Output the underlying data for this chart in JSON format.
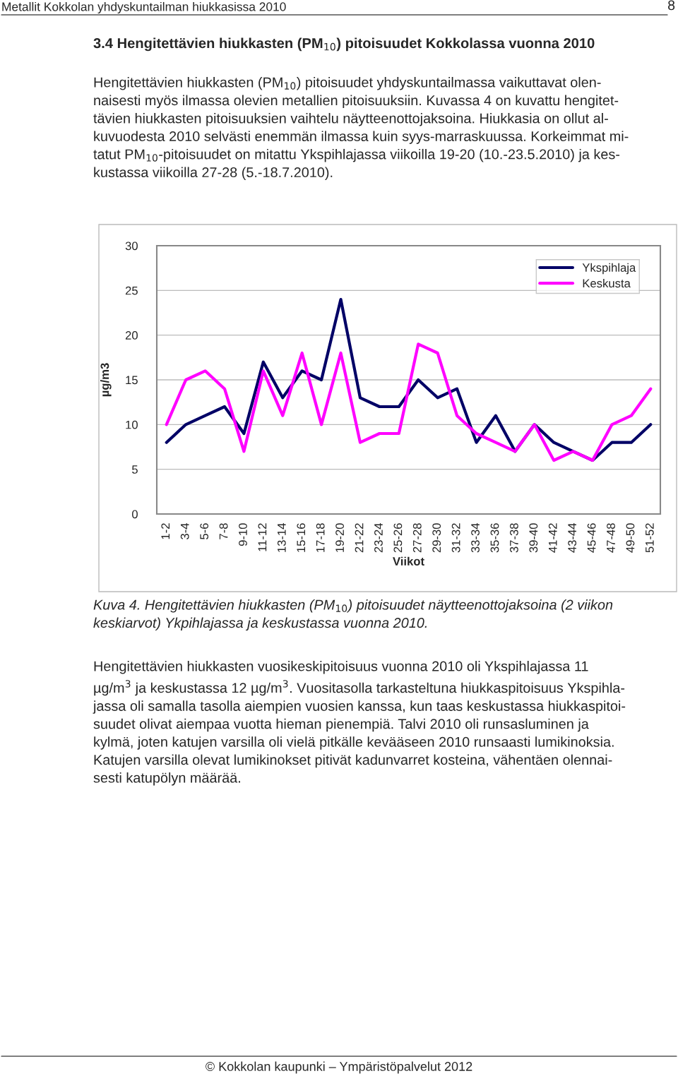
{
  "chart_data": {
    "type": "line",
    "title": "3.4 Hengitettävien hiukkasten (PM$_{10}$) pitoisuudet Kokkolassa vuonna 2010",
    "xlabel": "Viikot",
    "ylabel": "µg/m3",
    "categories": [
      "1-2",
      "3-4",
      "5-6",
      "7-8",
      "9-10",
      "11-12",
      "13-14",
      "15-16",
      "17-18",
      "19-20",
      "21-22",
      "23-24",
      "25-26",
      "27-28",
      "29-30",
      "31-32",
      "33-34",
      "35-36",
      "37-38",
      "39-40",
      "41-42",
      "43-44",
      "45-46",
      "47-48",
      "49-50",
      "51-52"
    ],
    "series": [
      {
        "name": "Ykspihlaja",
        "color": "#000066",
        "values": [
          8,
          10,
          11,
          12,
          9,
          17,
          13,
          16,
          15,
          24,
          13,
          12,
          12,
          15,
          13,
          14,
          8,
          11,
          7,
          10,
          8,
          7,
          6,
          8,
          8,
          10
        ]
      },
      {
        "name": "Keskusta",
        "color": "#ff00ff",
        "values": [
          10,
          15,
          16,
          14,
          7,
          16,
          11,
          18,
          10,
          18,
          8,
          9,
          9,
          19,
          18,
          11,
          9,
          8,
          7,
          10,
          6,
          7,
          6,
          10,
          11,
          14
        ]
      }
    ],
    "ylim": [
      0,
      30
    ],
    "yticks": [
      0,
      5,
      10,
      15,
      20,
      25,
      30
    ],
    "grid": "y",
    "legend": "top right",
    "marker": "none",
    "line_style": "solid",
    "annotations": [
      "Metallit Kokkolan yhdyskuntailman hiukkasissa 2010",
      "8",
      "Hengitettävien hiukkasten (PM$_{10}$) pitoisuudet yhdyskuntailmassa vaikuttavat olen-\nnaisesti myös ilmassa olevien metallien pitoisuuksiin. Kuvassa 4 on kuvattu hengitet-\ntävien hiukkasten pitoisuuksien vaihtelu näytteenottojaksoina. Hiukkasia on ollut al-\nkuvuodesta 2010 selvästi enemmän ilmassa kuin syys-marraskuussa. Korkeimmat mi-\ntatut PM$_{10}$-pitoisuudet on mitattu Ykspihlajassa viikoilla 19-20 (10.-23.5.2010) ja kes-\nkustassa viikoilla 27-28 (5.-18.7.2010).",
      "Kuva 4. Hengitettävien hiukkasten (PM$_{10}$) pitoisuudet näytteenottojaksoina (2 viikon\nkeskiarvot) Ykpihlajassa ja keskustassa vuonna 2010.",
      "Hengitettävien hiukkasten vuosikeskipitoisuus vuonna 2010 oli Ykspihlajassa 11\nµg/m$^{3}$ ja keskustassa 12 µg/m$^{3}$. Vuositasolla tarkasteltuna hiukkaspitoisuus Ykspihla-\njassa oli samalla tasolla aiempien vuosien kanssa, kun taas keskustassa hiukkaspitoi-\nsuudet olivat aiempaa vuotta hieman pienempiä. Talvi 2010 oli runsasluminen ja\nkylmä, joten katujen varsilla oli vielä pitkälle kevääseen 2010 runsaasti lumikinoksia.\nKatujen varsilla olevat lumikinokset pitivät kadunvarret kosteina, vähentäen olennai-\nsesti katupölyn määrää.",
      "© Kokkolan kaupunki – Ympäristöpalvelut 2012"
    ]
  }
}
